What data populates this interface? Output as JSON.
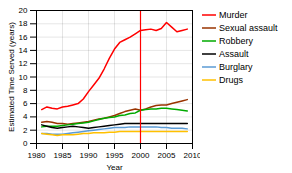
{
  "chart_data": {
    "type": "line",
    "xlabel": "Year",
    "ylabel": "Estimated Time Served (years)",
    "x": [
      1981,
      1982,
      1983,
      1984,
      1985,
      1986,
      1987,
      1988,
      1989,
      1990,
      1991,
      1992,
      1993,
      1994,
      1995,
      1996,
      1997,
      1998,
      1999,
      2000,
      2001,
      2002,
      2003,
      2004,
      2005,
      2006,
      2007,
      2008,
      2009
    ],
    "series": [
      {
        "name": "Murder",
        "color": "#ff0000",
        "values": [
          5.1,
          5.5,
          5.3,
          5.2,
          5.5,
          5.6,
          5.8,
          6.0,
          6.7,
          7.8,
          8.8,
          9.8,
          11.2,
          12.8,
          14.2,
          15.2,
          15.6,
          16.0,
          16.5,
          17.0,
          17.1,
          17.2,
          17.0,
          17.3,
          18.2,
          17.5,
          16.8,
          17.0,
          17.2
        ]
      },
      {
        "name": "Sexual assault",
        "color": "#993300",
        "values": [
          3.2,
          3.3,
          3.2,
          3.0,
          3.0,
          2.9,
          3.0,
          3.1,
          3.2,
          3.3,
          3.5,
          3.7,
          3.8,
          4.0,
          4.2,
          4.5,
          4.8,
          5.0,
          5.2,
          5.0,
          5.2,
          5.5,
          5.7,
          5.8,
          5.8,
          6.0,
          6.2,
          6.4,
          6.6
        ]
      },
      {
        "name": "Robbery",
        "color": "#00aa00",
        "values": [
          2.5,
          2.6,
          2.6,
          2.6,
          2.7,
          2.8,
          2.9,
          3.0,
          3.1,
          3.2,
          3.4,
          3.6,
          3.8,
          3.9,
          4.0,
          4.2,
          4.3,
          4.5,
          4.6,
          5.0,
          5.1,
          5.2,
          5.2,
          5.3,
          5.3,
          5.2,
          5.1,
          5.0,
          4.9
        ]
      },
      {
        "name": "Assault",
        "color": "#000000",
        "values": [
          2.8,
          2.6,
          2.4,
          2.3,
          2.4,
          2.5,
          2.6,
          2.5,
          2.4,
          2.3,
          2.4,
          2.5,
          2.6,
          2.7,
          2.8,
          2.9,
          3.0,
          3.0,
          3.0,
          3.0,
          3.0,
          3.0,
          3.0,
          3.0,
          3.0,
          3.0,
          3.0,
          3.0,
          3.0
        ]
      },
      {
        "name": "Burglary",
        "color": "#5b9bd5",
        "values": [
          1.5,
          1.5,
          1.4,
          1.4,
          1.4,
          1.5,
          1.6,
          1.7,
          1.8,
          1.9,
          2.0,
          2.1,
          2.2,
          2.3,
          2.4,
          2.4,
          2.4,
          2.5,
          2.5,
          2.5,
          2.5,
          2.5,
          2.5,
          2.4,
          2.4,
          2.3,
          2.3,
          2.3,
          2.2
        ]
      },
      {
        "name": "Drugs",
        "color": "#ffc000",
        "values": [
          1.5,
          1.4,
          1.3,
          1.2,
          1.3,
          1.3,
          1.3,
          1.4,
          1.5,
          1.5,
          1.6,
          1.6,
          1.6,
          1.7,
          1.7,
          1.8,
          1.8,
          1.8,
          1.8,
          1.8,
          1.8,
          1.8,
          1.8,
          1.8,
          1.8,
          1.8,
          1.8,
          1.8,
          1.8
        ]
      }
    ],
    "reference_lines": [
      {
        "x": 2000,
        "color": "#ff0000"
      }
    ],
    "xlim": [
      1980,
      2010
    ],
    "xticks": [
      1980,
      1985,
      1990,
      1995,
      2000,
      2005,
      2010
    ],
    "ylim": [
      0,
      20
    ],
    "yticks": [
      0,
      2,
      4,
      6,
      8,
      10,
      12,
      14,
      16,
      18,
      20
    ],
    "grid": true,
    "legend": "right"
  }
}
